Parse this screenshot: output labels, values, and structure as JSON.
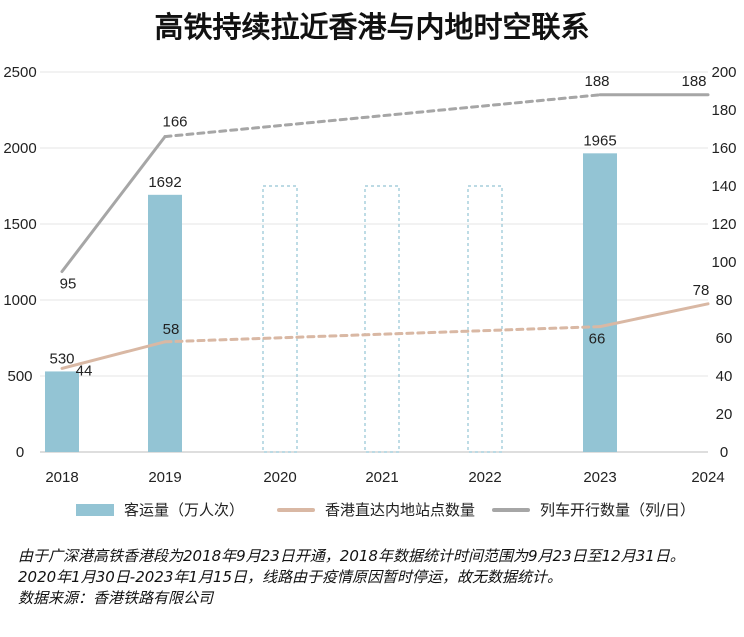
{
  "title": "高铁持续拉近香港与内地时空联系",
  "chart_data": {
    "type": "bar",
    "categories": [
      "2018",
      "2019",
      "2020",
      "2021",
      "2022",
      "2023",
      "2024"
    ],
    "y_left": {
      "min": 0,
      "max": 2500,
      "ticks": [
        0,
        500,
        1000,
        1500,
        2000,
        2500
      ]
    },
    "y_right": {
      "min": 0,
      "max": 200,
      "ticks": [
        0,
        20,
        40,
        60,
        80,
        100,
        120,
        140,
        160,
        180,
        200
      ]
    },
    "grid": true,
    "legend_position": "bottom",
    "series": [
      {
        "name": "客运量（万人次）",
        "kind": "bar",
        "axis": "left",
        "color": "#93c4d4",
        "values": [
          530,
          1692,
          null,
          null,
          null,
          1965,
          null
        ],
        "value_labels": [
          "530",
          "1692",
          "",
          "",
          "",
          "1965",
          ""
        ],
        "placeholder_categories": [
          "2020",
          "2021",
          "2022"
        ],
        "placeholder_height": 1750
      },
      {
        "name": "香港直达内地站点数量",
        "kind": "line",
        "axis": "right",
        "color": "#d9b8a4",
        "x": [
          "2018",
          "2019",
          "2023",
          "2024"
        ],
        "values": [
          44,
          58,
          66,
          78
        ],
        "value_labels": [
          "44",
          "58",
          "66",
          "78"
        ],
        "dashed_segment": [
          "2019",
          "2023"
        ]
      },
      {
        "name": "列车开行数量（列/日）",
        "kind": "line",
        "axis": "right",
        "color": "#a6a6a6",
        "x": [
          "2018",
          "2019",
          "2023",
          "2024"
        ],
        "values": [
          95,
          166,
          188,
          188
        ],
        "value_labels": [
          "95",
          "166",
          "188",
          "188"
        ],
        "dashed_segment": [
          "2019",
          "2023"
        ]
      }
    ]
  },
  "footnotes": [
    "由于广深港高铁香港段为2018年9月23日开通，2018年数据统计时间范围为9月23日至12月31日。",
    "2020年1月30日-2023年1月15日，线路由于疫情原因暂时停运，故无数据统计。",
    "数据来源：香港铁路有限公司"
  ]
}
